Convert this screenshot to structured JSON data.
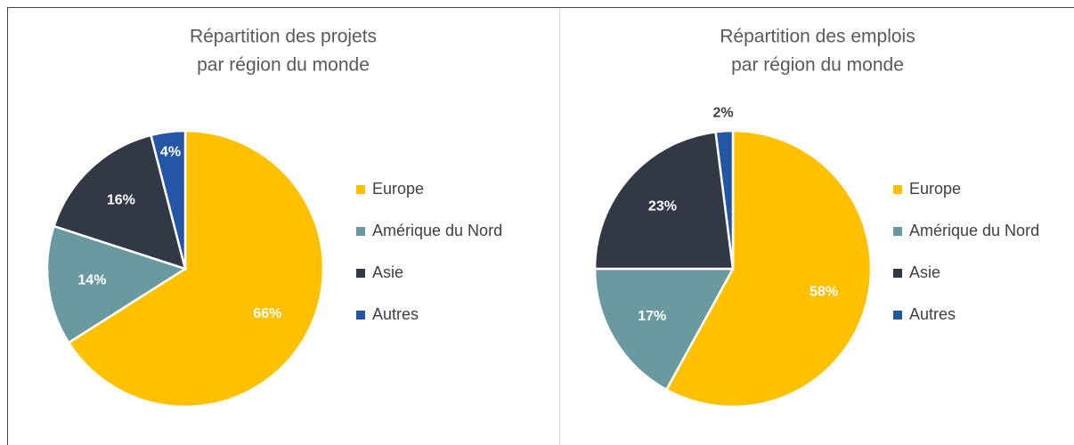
{
  "chart_data": [
    {
      "type": "pie",
      "title": [
        "Répartition des projets",
        "par région du monde"
      ],
      "categories": [
        "Europe",
        "Amérique du Nord",
        "Asie",
        "Autres"
      ],
      "values": [
        66,
        14,
        16,
        4
      ],
      "value_labels": [
        "66%",
        "14%",
        "16%",
        "4%"
      ],
      "colors": [
        "#FFC000",
        "#6A99A0",
        "#323846",
        "#2456A5"
      ],
      "legend": "right"
    },
    {
      "type": "pie",
      "title": [
        "Répartition des emplois",
        "par région du monde"
      ],
      "categories": [
        "Europe",
        "Amérique du Nord",
        "Asie",
        "Autres"
      ],
      "values": [
        58,
        17,
        23,
        2
      ],
      "value_labels": [
        "58%",
        "17%",
        "23%",
        "2%"
      ],
      "colors": [
        "#FFC000",
        "#6A99A0",
        "#323846",
        "#2456A5"
      ],
      "legend": "right"
    }
  ]
}
